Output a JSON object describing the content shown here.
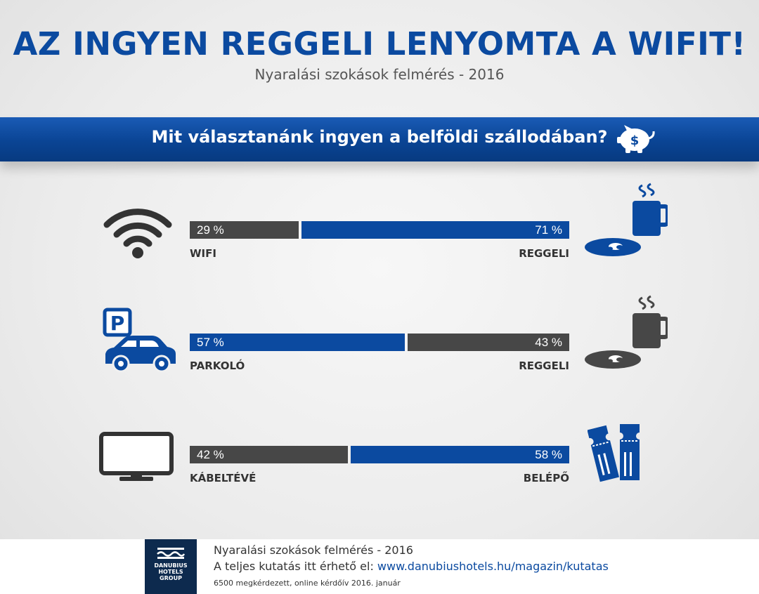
{
  "title": "AZ INGYEN REGGELI LENYOMTA A WIFIT!",
  "subtitle": "Nyaralási szokások felmérés - 2016",
  "banner": {
    "question": "Mit választanánk ingyen a belföldi szállodában?",
    "icon": "piggy-bank-icon"
  },
  "colors": {
    "blue": "#0b4aa0",
    "gray": "#474747",
    "brand_dark": "#0d2a4e"
  },
  "chart_data": {
    "type": "bar",
    "orientation": "horizontal",
    "stacked": true,
    "unit": "%",
    "title": "Mit választanánk ingyen a belföldi szállodában?",
    "rows": [
      {
        "left": {
          "label": "WIFI",
          "value": 29,
          "display": "29 %",
          "color": "#474747",
          "icon": "wifi-icon"
        },
        "right": {
          "label": "REGGELI",
          "value": 71,
          "display": "71 %",
          "color": "#0b4aa0",
          "icon": "breakfast-icon"
        }
      },
      {
        "left": {
          "label": "PARKOLÓ",
          "value": 57,
          "display": "57 %",
          "color": "#0b4aa0",
          "icon": "parking-car-icon"
        },
        "right": {
          "label": "REGGELI",
          "value": 43,
          "display": "43 %",
          "color": "#474747",
          "icon": "breakfast-icon"
        }
      },
      {
        "left": {
          "label": "KÁBELTÉVÉ",
          "value": 42,
          "display": "42 %",
          "color": "#474747",
          "icon": "tv-icon"
        },
        "right": {
          "label": "BELÉPŐ",
          "value": 58,
          "display": "58 %",
          "color": "#0b4aa0",
          "icon": "ticket-icon"
        }
      }
    ]
  },
  "footer": {
    "logo_text": "DANUBIUS\nHOTELS\nGROUP",
    "line1": "Nyaralási szokások felmérés - 2016",
    "line2_prefix": "A teljes kutatás itt érhető el: ",
    "line2_link": "www.danubiushotels.hu/magazin/kutatas",
    "line3": "6500 megkérdezett, online kérdőív 2016. január"
  }
}
